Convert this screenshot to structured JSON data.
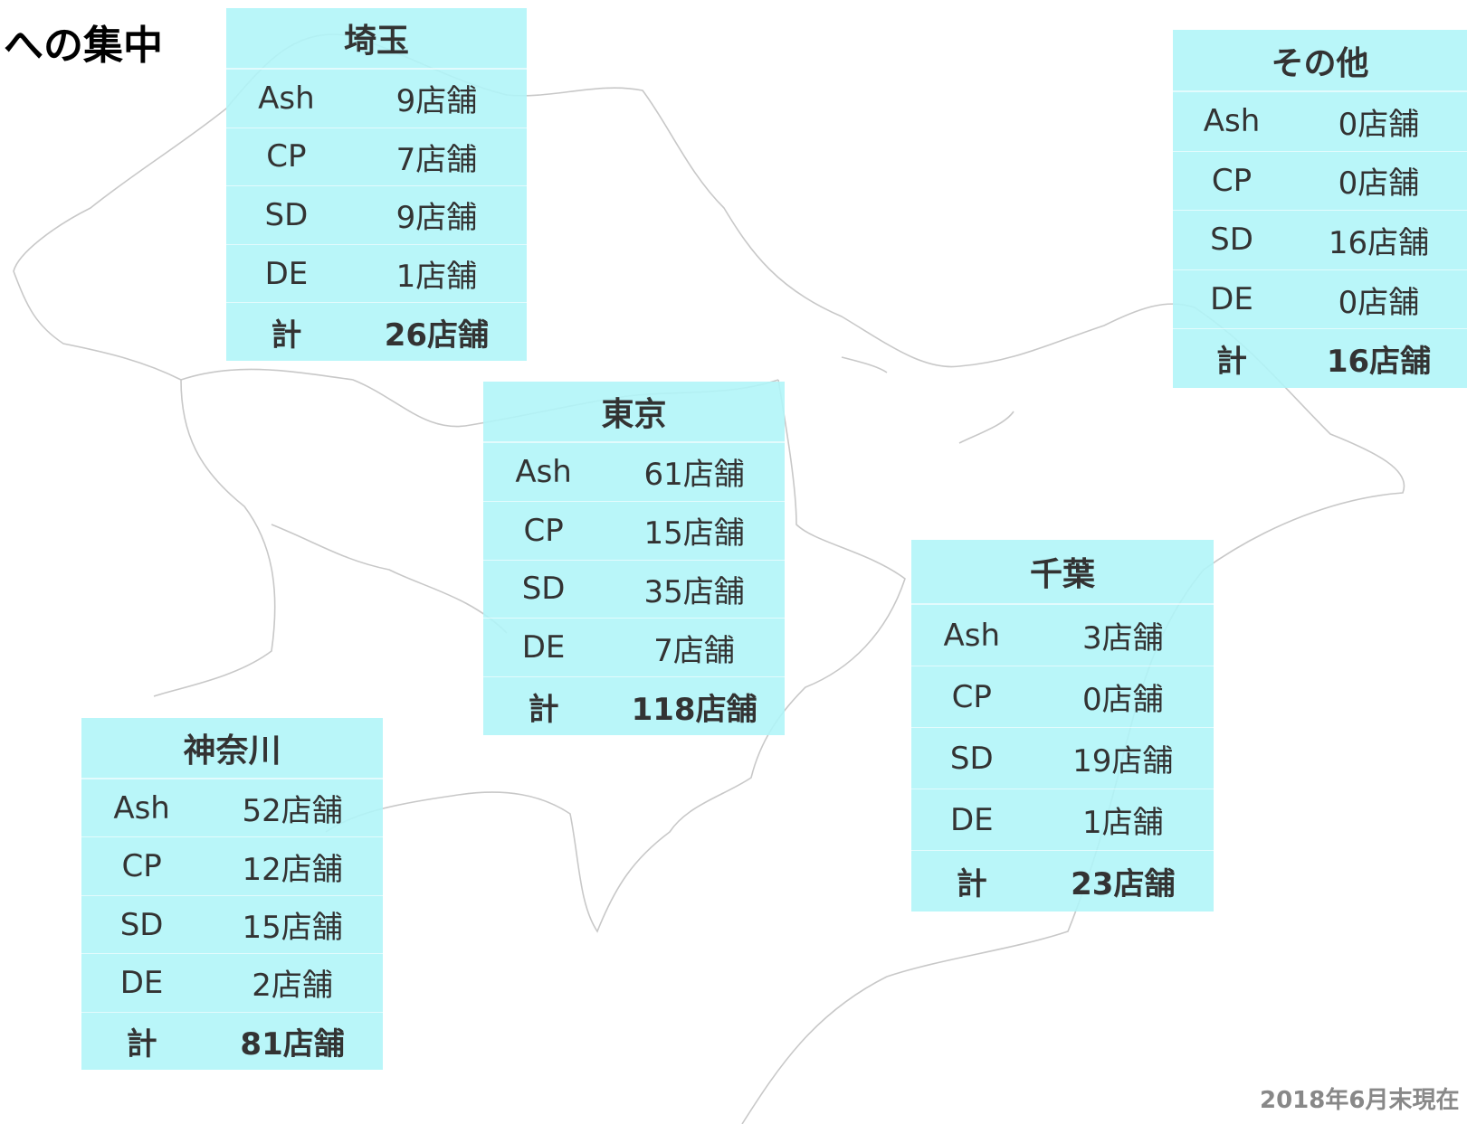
{
  "title": "への集中",
  "footnote": "2018年6月末現在",
  "regions": [
    {
      "name": "埼玉",
      "rows": [
        [
          "Ash",
          "9店舗"
        ],
        [
          "CP",
          "7店舗"
        ],
        [
          "SD",
          "9店舗"
        ],
        [
          "DE",
          "1店舗"
        ]
      ],
      "total": [
        "計",
        "26店舗"
      ]
    },
    {
      "name": "その他",
      "rows": [
        [
          "Ash",
          "0店舗"
        ],
        [
          "CP",
          "0店舗"
        ],
        [
          "SD",
          "16店舗"
        ],
        [
          "DE",
          "0店舗"
        ]
      ],
      "total": [
        "計",
        "16店舗"
      ]
    },
    {
      "name": "東京",
      "rows": [
        [
          "Ash",
          "61店舗"
        ],
        [
          "CP",
          "15店舗"
        ],
        [
          "SD",
          "35店舗"
        ],
        [
          "DE",
          "7店舗"
        ]
      ],
      "total": [
        "計",
        "118店舗"
      ]
    },
    {
      "name": "千葉",
      "rows": [
        [
          "Ash",
          "3店舗"
        ],
        [
          "CP",
          "0店舗"
        ],
        [
          "SD",
          "19店舗"
        ],
        [
          "DE",
          "1店舗"
        ]
      ],
      "total": [
        "計",
        "23店舗"
      ]
    },
    {
      "name": "神奈川",
      "rows": [
        [
          "Ash",
          "52店舗"
        ],
        [
          "CP",
          "12店舗"
        ],
        [
          "SD",
          "15店舗"
        ],
        [
          "DE",
          "2店舗"
        ]
      ],
      "total": [
        "計",
        "81店舗"
      ]
    }
  ]
}
